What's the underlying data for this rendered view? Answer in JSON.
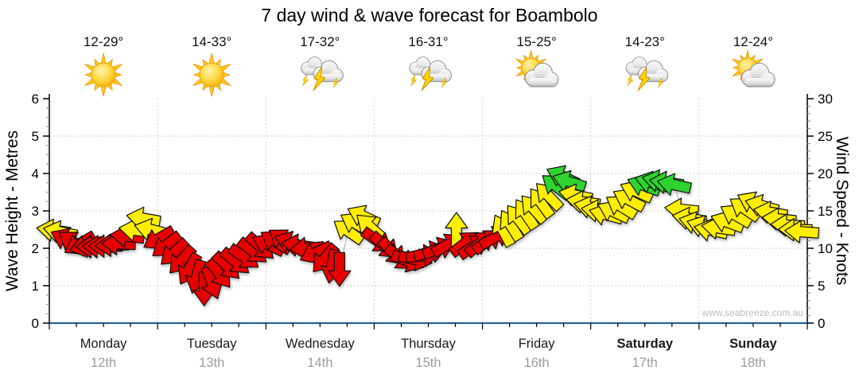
{
  "title": "7 day wind & wave forecast for Boambolo",
  "watermark": "www.seabreeze.com.au",
  "chart_data": {
    "type": "wind_arrow_forecast",
    "y_left": {
      "label": "Wave Height - Metres",
      "min": 0,
      "max": 6,
      "ticks": [
        0,
        1,
        2,
        3,
        4,
        5,
        6
      ]
    },
    "y_right": {
      "label": "Wind Speed - Knots",
      "min": 0,
      "max": 30,
      "ticks": [
        0,
        5,
        10,
        15,
        20,
        25,
        30
      ]
    },
    "grid_knots": [
      5,
      10,
      15,
      20,
      25
    ],
    "legend_colors": {
      "red": "#e60000",
      "yellow": "#ffee00",
      "green": "#2fd32f"
    },
    "days": [
      {
        "name": "Monday",
        "date": "12th",
        "temp": "12-29°",
        "icon": "sunny",
        "bold": false
      },
      {
        "name": "Tuesday",
        "date": "13th",
        "temp": "14-33°",
        "icon": "sunny",
        "bold": false
      },
      {
        "name": "Wednesday",
        "date": "14th",
        "temp": "17-32°",
        "icon": "storm",
        "bold": false
      },
      {
        "name": "Thursday",
        "date": "15th",
        "temp": "16-31°",
        "icon": "storm",
        "bold": false
      },
      {
        "name": "Friday",
        "date": "16th",
        "temp": "15-25°",
        "icon": "partly-cloudy",
        "bold": false
      },
      {
        "name": "Saturday",
        "date": "17th",
        "temp": "14-23°",
        "icon": "storm",
        "bold": true
      },
      {
        "name": "Sunday",
        "date": "18th",
        "temp": "12-24°",
        "icon": "partly-cloudy",
        "bold": true
      }
    ],
    "points": [
      [
        0.04,
        12.4,
        188,
        "y"
      ],
      [
        0.1,
        12.2,
        192,
        "y"
      ],
      [
        0.16,
        11.2,
        205,
        "r"
      ],
      [
        0.22,
        10.8,
        215,
        "r"
      ],
      [
        0.28,
        10.6,
        150,
        "r"
      ],
      [
        0.34,
        10.3,
        165,
        "r"
      ],
      [
        0.4,
        10.2,
        180,
        "r"
      ],
      [
        0.46,
        10.2,
        182,
        "r"
      ],
      [
        0.52,
        10.3,
        180,
        "r"
      ],
      [
        0.58,
        10.4,
        178,
        "r"
      ],
      [
        0.64,
        10.6,
        182,
        "r"
      ],
      [
        0.72,
        11.6,
        186,
        "r"
      ],
      [
        0.8,
        12.4,
        188,
        "y"
      ],
      [
        0.87,
        14.0,
        190,
        "y"
      ],
      [
        0.94,
        12.5,
        194,
        "y"
      ],
      [
        1.01,
        11.3,
        150,
        "r"
      ],
      [
        1.08,
        10.4,
        142,
        "r"
      ],
      [
        1.15,
        9.4,
        138,
        "r"
      ],
      [
        1.22,
        8.4,
        132,
        "r"
      ],
      [
        1.29,
        7.2,
        120,
        "r"
      ],
      [
        1.36,
        6.2,
        105,
        "r"
      ],
      [
        1.43,
        4.6,
        90,
        "r"
      ],
      [
        1.5,
        5.4,
        70,
        "r"
      ],
      [
        1.57,
        6.6,
        52,
        "r"
      ],
      [
        1.64,
        7.6,
        45,
        "r"
      ],
      [
        1.72,
        8.2,
        40,
        "r"
      ],
      [
        1.8,
        8.8,
        35,
        "r"
      ],
      [
        1.88,
        9.6,
        38,
        "r"
      ],
      [
        1.95,
        10.2,
        42,
        "r"
      ],
      [
        2.02,
        10.5,
        205,
        "r"
      ],
      [
        2.09,
        10.9,
        212,
        "r"
      ],
      [
        2.16,
        11.1,
        215,
        "r"
      ],
      [
        2.23,
        10.8,
        200,
        "r"
      ],
      [
        2.3,
        10.4,
        188,
        "r"
      ],
      [
        2.38,
        10.0,
        175,
        "r"
      ],
      [
        2.46,
        9.4,
        155,
        "r"
      ],
      [
        2.54,
        8.6,
        130,
        "r"
      ],
      [
        2.61,
        7.6,
        100,
        "r"
      ],
      [
        2.68,
        7.2,
        90,
        "r"
      ],
      [
        2.76,
        12.3,
        215,
        "y"
      ],
      [
        2.83,
        13.3,
        210,
        "y"
      ],
      [
        2.9,
        14.3,
        205,
        "y"
      ],
      [
        2.96,
        12.9,
        222,
        "y"
      ],
      [
        3.03,
        11.0,
        35,
        "r"
      ],
      [
        3.1,
        10.3,
        42,
        "r"
      ],
      [
        3.17,
        9.5,
        46,
        "r"
      ],
      [
        3.24,
        8.7,
        38,
        "r"
      ],
      [
        3.31,
        8.3,
        22,
        "r"
      ],
      [
        3.38,
        8.5,
        12,
        "r"
      ],
      [
        3.45,
        9.0,
        355,
        "r"
      ],
      [
        3.52,
        9.5,
        345,
        "r"
      ],
      [
        3.6,
        10.0,
        338,
        "r"
      ],
      [
        3.68,
        10.5,
        330,
        "r"
      ],
      [
        3.76,
        12.5,
        270,
        "y"
      ],
      [
        3.84,
        10.7,
        322,
        "r"
      ],
      [
        3.92,
        10.3,
        326,
        "r"
      ],
      [
        3.98,
        10.7,
        320,
        "r"
      ],
      [
        4.05,
        11.0,
        324,
        "r"
      ],
      [
        4.12,
        11.5,
        330,
        "r"
      ],
      [
        4.19,
        12.4,
        242,
        "y"
      ],
      [
        4.26,
        13.1,
        238,
        "y"
      ],
      [
        4.33,
        13.9,
        232,
        "y"
      ],
      [
        4.4,
        14.6,
        236,
        "y"
      ],
      [
        4.47,
        15.3,
        228,
        "y"
      ],
      [
        4.54,
        16.1,
        234,
        "y"
      ],
      [
        4.61,
        17.0,
        226,
        "y"
      ],
      [
        4.68,
        18.3,
        218,
        "g"
      ],
      [
        4.74,
        19.6,
        205,
        "g"
      ],
      [
        4.8,
        18.9,
        198,
        "g"
      ],
      [
        4.86,
        17.1,
        192,
        "y"
      ],
      [
        4.93,
        16.2,
        188,
        "y"
      ],
      [
        5.0,
        15.5,
        192,
        "y"
      ],
      [
        5.07,
        15.0,
        188,
        "y"
      ],
      [
        5.14,
        14.5,
        195,
        "y"
      ],
      [
        5.21,
        14.9,
        205,
        "y"
      ],
      [
        5.28,
        15.6,
        212,
        "y"
      ],
      [
        5.35,
        16.5,
        208,
        "y"
      ],
      [
        5.42,
        17.6,
        204,
        "y"
      ],
      [
        5.49,
        18.4,
        200,
        "g"
      ],
      [
        5.56,
        18.8,
        196,
        "g"
      ],
      [
        5.63,
        19.0,
        192,
        "g"
      ],
      [
        5.7,
        18.8,
        188,
        "g"
      ],
      [
        5.77,
        18.5,
        192,
        "g"
      ],
      [
        5.84,
        15.2,
        186,
        "y"
      ],
      [
        5.91,
        14.0,
        190,
        "y"
      ],
      [
        5.97,
        13.4,
        194,
        "y"
      ],
      [
        6.04,
        12.9,
        198,
        "y"
      ],
      [
        6.11,
        12.4,
        192,
        "y"
      ],
      [
        6.18,
        12.7,
        188,
        "y"
      ],
      [
        6.26,
        13.5,
        200,
        "y"
      ],
      [
        6.34,
        14.4,
        210,
        "y"
      ],
      [
        6.42,
        15.3,
        214,
        "y"
      ],
      [
        6.5,
        16.1,
        206,
        "y"
      ],
      [
        6.58,
        15.7,
        196,
        "y"
      ],
      [
        6.66,
        14.8,
        190,
        "y"
      ],
      [
        6.74,
        13.9,
        186,
        "y"
      ],
      [
        6.82,
        13.1,
        183,
        "y"
      ],
      [
        6.89,
        12.5,
        181,
        "y"
      ],
      [
        6.95,
        12.2,
        184,
        "y"
      ]
    ]
  }
}
